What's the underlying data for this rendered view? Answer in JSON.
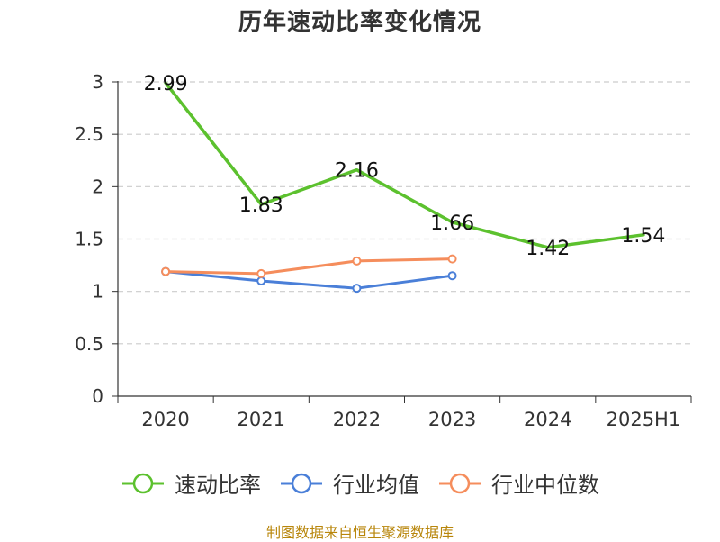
{
  "title": "历年速动比率变化情况",
  "source": "制图数据来自恒生聚源数据库",
  "chart_data": {
    "type": "line",
    "categories": [
      "2020",
      "2021",
      "2022",
      "2023",
      "2024",
      "2025H1"
    ],
    "ylim": [
      0,
      3
    ],
    "yticks": [
      0,
      0.5,
      1,
      1.5,
      2,
      2.5,
      3
    ],
    "yticklabels": [
      "0",
      "0.5",
      "1",
      "1.5",
      "2",
      "2.5",
      "3"
    ],
    "grid": true,
    "legend_position": "bottom",
    "series": [
      {
        "name": "速动比率",
        "color": "#5cc12e",
        "values": [
          2.99,
          1.83,
          2.16,
          1.66,
          1.42,
          1.54
        ],
        "labels": [
          "2.99",
          "1.83",
          "2.16",
          "1.66",
          "1.42",
          "1.54"
        ],
        "show_markers": false
      },
      {
        "name": "行业均值",
        "color": "#4a7fd8",
        "values": [
          1.19,
          1.1,
          1.03,
          1.15,
          null,
          null
        ],
        "show_markers": true
      },
      {
        "name": "行业中位数",
        "color": "#f58d5c",
        "values": [
          1.19,
          1.17,
          1.29,
          1.31,
          null,
          null
        ],
        "show_markers": true
      }
    ]
  }
}
